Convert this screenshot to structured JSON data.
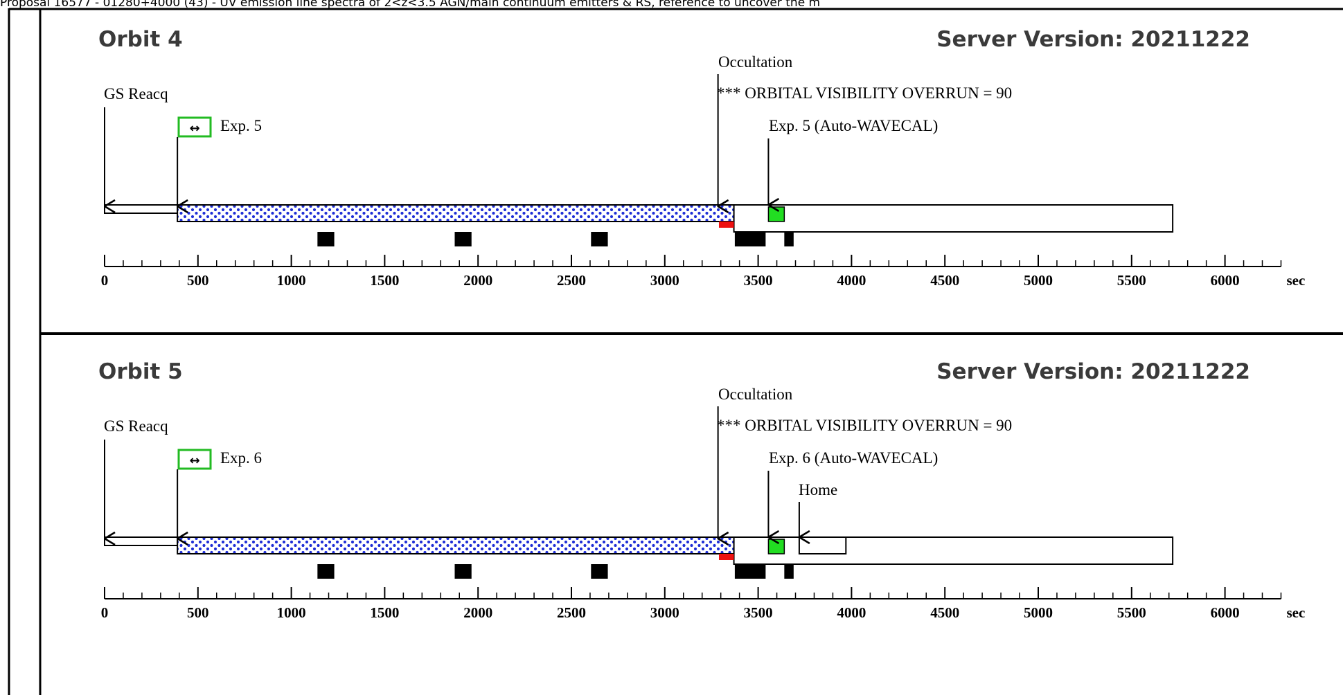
{
  "header_text": "Proposal 16577 - 01280+4000 (43) - UV emission line spectra of 2<z<3.5 AGN/main continuum emitters & RS, reference to uncover the m",
  "axis": {
    "unit": "sec",
    "min": 0,
    "max": 6250,
    "major_ticks": [
      0,
      500,
      1000,
      1500,
      2000,
      2500,
      3000,
      3500,
      4000,
      4500,
      5000,
      5500,
      6000
    ],
    "minor_step": 100
  },
  "colors": {
    "exposure_dots": "#1f2fd6",
    "exposure_bg": "#ffffff",
    "wavecal": "#22dd22",
    "occultation_red": "#ee1111",
    "exposure_icon_border": "#22bb22",
    "block": "#000000",
    "frame": "#000000"
  },
  "panels": [
    {
      "title": "Orbit 4",
      "server_version": "Server Version: 20211222",
      "labels": {
        "gs_reacq": "GS Reacq",
        "exposure": "Exp. 5",
        "occultation": "Occultation",
        "overrun": "*** ORBITAL VISIBILITY OVERRUN = 90",
        "wavecal": "Exp. 5 (Auto-WAVECAL)",
        "home": ""
      },
      "events": {
        "gs_reacq_start": 0,
        "exposure_start": 390,
        "occultation": 3285,
        "exposure_end": 3370,
        "wavecal_start": 3555,
        "wavecal_end": 3640,
        "visibility_end": 5720,
        "home_start": null,
        "home_end": null
      },
      "blocks": [
        [
          1140,
          1230
        ],
        [
          1875,
          1965
        ],
        [
          2605,
          2695
        ],
        [
          3375,
          3540
        ],
        [
          3640,
          3690
        ]
      ],
      "red_segment": [
        3290,
        3370
      ]
    },
    {
      "title": "Orbit 5",
      "server_version": "Server Version: 20211222",
      "labels": {
        "gs_reacq": "GS Reacq",
        "exposure": "Exp. 6",
        "occultation": "Occultation",
        "overrun": "*** ORBITAL VISIBILITY OVERRUN = 90",
        "wavecal": "Exp. 6 (Auto-WAVECAL)",
        "home": "Home"
      },
      "events": {
        "gs_reacq_start": 0,
        "exposure_start": 390,
        "occultation": 3285,
        "exposure_end": 3370,
        "wavecal_start": 3555,
        "wavecal_end": 3640,
        "visibility_end": 5720,
        "home_start": 3720,
        "home_end": 3970
      },
      "blocks": [
        [
          1140,
          1230
        ],
        [
          1875,
          1965
        ],
        [
          2605,
          2695
        ],
        [
          3375,
          3540
        ],
        [
          3640,
          3690
        ]
      ],
      "red_segment": [
        3290,
        3370
      ]
    }
  ]
}
